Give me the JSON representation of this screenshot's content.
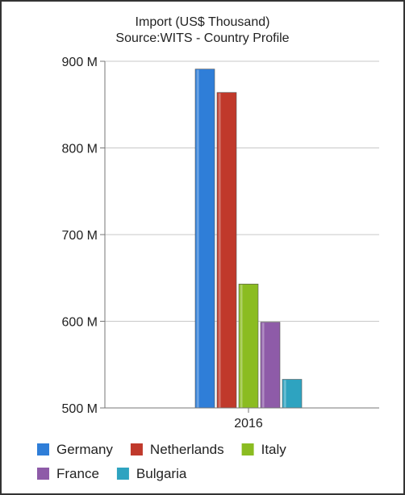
{
  "chart_data": {
    "type": "bar",
    "title": "Import (US$ Thousand)",
    "subtitle": "Source:WITS - Country Profile",
    "categories": [
      "2016"
    ],
    "series": [
      {
        "name": "Germany",
        "values": [
          891
        ],
        "color": "#2f7ed8"
      },
      {
        "name": "Netherlands",
        "values": [
          864
        ],
        "color": "#c0392b"
      },
      {
        "name": "Italy",
        "values": [
          643
        ],
        "color": "#8bbc21"
      },
      {
        "name": "France",
        "values": [
          599
        ],
        "color": "#8e5ba8"
      },
      {
        "name": "Bulgaria",
        "values": [
          533
        ],
        "color": "#2ea3c0"
      }
    ],
    "unit_suffix": " M",
    "y_ticks": [
      500,
      600,
      700,
      800,
      900
    ],
    "ylim": [
      500,
      900
    ],
    "xlabel": "",
    "ylabel": "",
    "grid": true,
    "legend_position": "bottom"
  }
}
